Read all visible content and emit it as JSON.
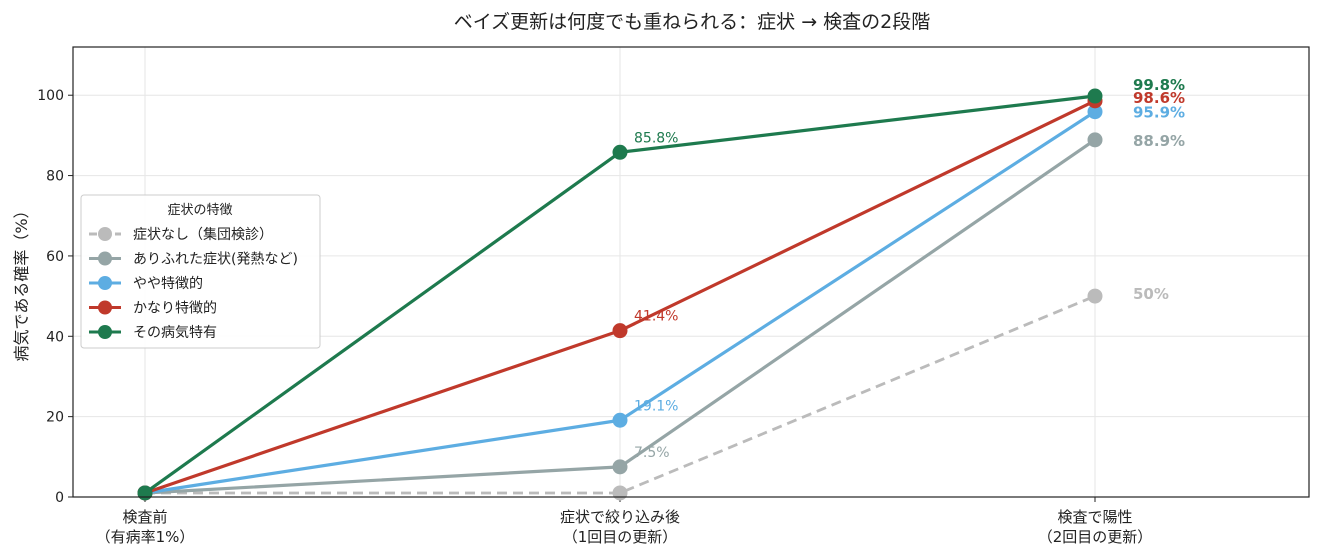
{
  "chart_data": {
    "type": "line",
    "title": "ベイズ更新は何度でも重ねられる：症状 → 検査の2段階",
    "ylabel": "病気である確率（%）",
    "xlabel": "",
    "ylim": [
      0,
      112
    ],
    "yticks": [
      0,
      20,
      40,
      60,
      80,
      100
    ],
    "grid": true,
    "categories": [
      [
        "検査前",
        "（有病率1%）"
      ],
      [
        "症状で絞り込み後",
        "（1回目の更新）"
      ],
      [
        "検査で陽性",
        "（2回目の更新）"
      ]
    ],
    "legend": {
      "title": "症状の特徴",
      "placement": "center-left"
    },
    "series": [
      {
        "name": "症状なし（集団検診）",
        "color": "#bbbbbb",
        "dashed": true,
        "values": [
          1,
          1,
          50
        ],
        "mid_label": "",
        "end_label": "50%"
      },
      {
        "name": "ありふれた症状(発熱など)",
        "color": "#95a5a6",
        "dashed": false,
        "values": [
          1,
          7.5,
          88.9
        ],
        "mid_label": "7.5%",
        "end_label": "88.9%"
      },
      {
        "name": "やや特徴的",
        "color": "#5dade2",
        "dashed": false,
        "values": [
          1,
          19.1,
          95.9
        ],
        "mid_label": "19.1%",
        "end_label": "95.9%"
      },
      {
        "name": "かなり特徴的",
        "color": "#c0392b",
        "dashed": false,
        "values": [
          1,
          41.4,
          98.6
        ],
        "mid_label": "41.4%",
        "end_label": "98.6%"
      },
      {
        "name": "その病気特有",
        "color": "#1e7a4e",
        "dashed": false,
        "values": [
          1,
          85.8,
          99.8
        ],
        "mid_label": "85.8%",
        "end_label": "99.8%"
      }
    ]
  }
}
